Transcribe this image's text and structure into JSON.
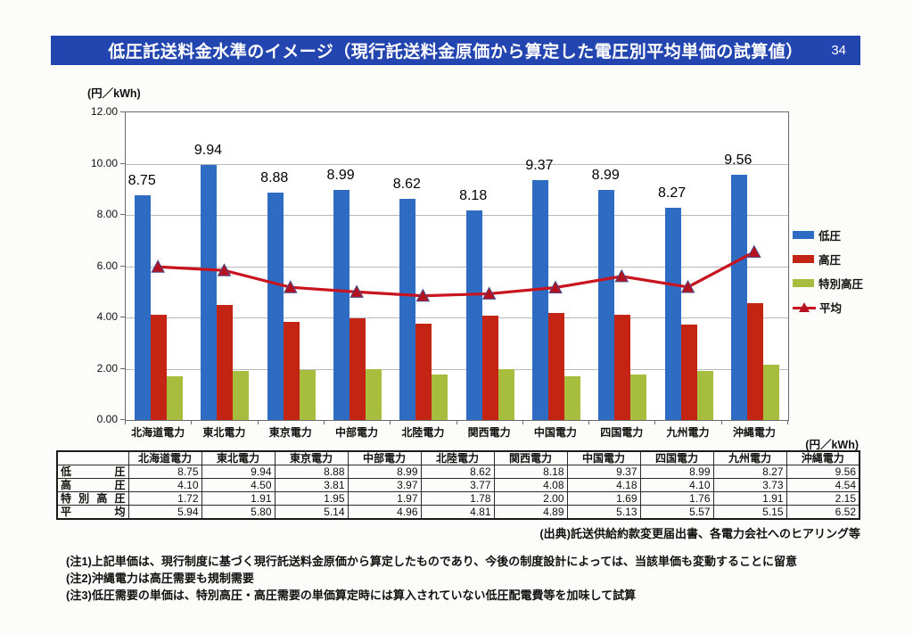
{
  "header": {
    "title": "低圧託送料金水準のイメージ（現行託送料金原価から算定した電圧別平均単価の試算値）",
    "page_number": "34"
  },
  "chart_data": {
    "type": "bar+line",
    "title": "低圧託送料金水準のイメージ",
    "unit_label": "(円／kWh)",
    "categories": [
      "北海道電力",
      "東北電力",
      "東京電力",
      "中部電力",
      "北陸電力",
      "関西電力",
      "中国電力",
      "四国電力",
      "九州電力",
      "沖縄電力"
    ],
    "series": [
      {
        "name": "低圧",
        "type": "bar",
        "color": "#2e6cc4",
        "data_labels": true,
        "values": [
          8.75,
          9.94,
          8.88,
          8.99,
          8.62,
          8.18,
          9.37,
          8.99,
          8.27,
          9.56
        ]
      },
      {
        "name": "高圧",
        "type": "bar",
        "color": "#c32413",
        "data_labels": false,
        "values": [
          4.1,
          4.5,
          3.81,
          3.97,
          3.77,
          4.08,
          4.18,
          4.1,
          3.73,
          4.54
        ]
      },
      {
        "name": "特別高圧",
        "type": "bar",
        "color": "#a6bd3e",
        "data_labels": false,
        "values": [
          1.72,
          1.91,
          1.95,
          1.97,
          1.78,
          2.0,
          1.69,
          1.76,
          1.91,
          2.15
        ]
      },
      {
        "name": "平均",
        "type": "line",
        "color": "#c8141e",
        "marker": "triangle",
        "marker_color": "#b5121f",
        "marker_edge": "#4a4a8a",
        "values": [
          5.94,
          5.8,
          5.14,
          4.96,
          4.81,
          4.89,
          5.13,
          5.57,
          5.15,
          6.52
        ]
      }
    ],
    "ylim": [
      0,
      12
    ],
    "ytick_step": 2,
    "ytick_decimals": 2,
    "grid": true,
    "legend_position": "right"
  },
  "table": {
    "unit_label": "(円／kWh)",
    "header": [
      "",
      "北海道電力",
      "東北電力",
      "東京電力",
      "中部電力",
      "北陸電力",
      "関西電力",
      "中国電力",
      "四国電力",
      "九州電力",
      "沖縄電力"
    ],
    "rows": [
      {
        "label": "低圧",
        "values": [
          "8.75",
          "9.94",
          "8.88",
          "8.99",
          "8.62",
          "8.18",
          "9.37",
          "8.99",
          "8.27",
          "9.56"
        ]
      },
      {
        "label": "高圧",
        "values": [
          "4.10",
          "4.50",
          "3.81",
          "3.97",
          "3.77",
          "4.08",
          "4.18",
          "4.10",
          "3.73",
          "4.54"
        ]
      },
      {
        "label": "特別高圧",
        "values": [
          "1.72",
          "1.91",
          "1.95",
          "1.97",
          "1.78",
          "2.00",
          "1.69",
          "1.76",
          "1.91",
          "2.15"
        ]
      },
      {
        "label": "平均",
        "values": [
          "5.94",
          "5.80",
          "5.14",
          "4.96",
          "4.81",
          "4.89",
          "5.13",
          "5.57",
          "5.15",
          "6.52"
        ]
      }
    ]
  },
  "source": "(出典)託送供給約款変更届出書、各電力会社へのヒアリング等",
  "notes": [
    "(注1)上記単価は、現行制度に基づく現行託送料金原価から算定したものであり、今後の制度設計によっては、当該単価も変動することに留意",
    "(注2)沖縄電力は高圧需要も規制需要",
    "(注3)低圧需要の単価は、特別高圧・高圧需要の単価算定時には算入されていない低圧配電費等を加味して試算"
  ]
}
